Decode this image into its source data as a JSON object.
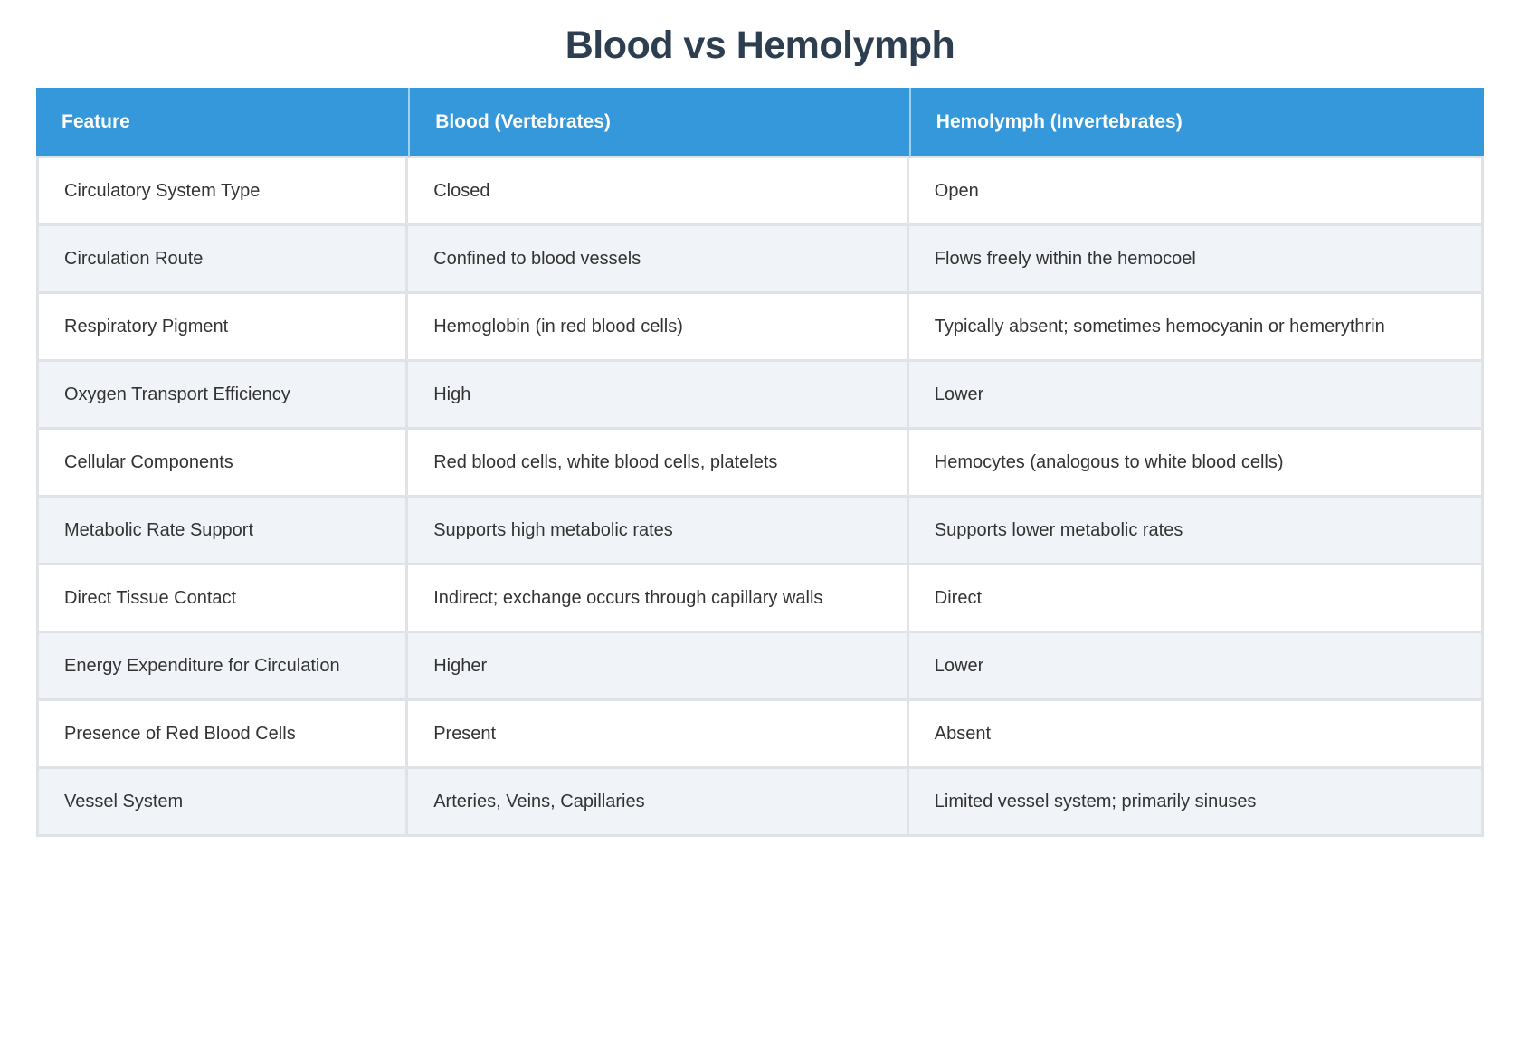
{
  "page": {
    "title": "Blood vs Hemolymph"
  },
  "colors": {
    "header_bg": "#3498db",
    "header_text": "#ffffff",
    "title_text": "#2c3e50",
    "body_text": "#333333",
    "row_alt_bg": "#f0f3f7",
    "divider": "#dfe2e6"
  },
  "table": {
    "columns": [
      "Feature",
      "Blood (Vertebrates)",
      "Hemolymph (Invertebrates)"
    ],
    "rows": [
      {
        "feature": "Circulatory System Type",
        "blood": "Closed",
        "hemolymph": "Open"
      },
      {
        "feature": "Circulation Route",
        "blood": "Confined to blood vessels",
        "hemolymph": "Flows freely within the hemocoel"
      },
      {
        "feature": "Respiratory Pigment",
        "blood": "Hemoglobin (in red blood cells)",
        "hemolymph": "Typically absent; sometimes hemocyanin or hemerythrin"
      },
      {
        "feature": "Oxygen Transport Efficiency",
        "blood": "High",
        "hemolymph": "Lower"
      },
      {
        "feature": "Cellular Components",
        "blood": "Red blood cells, white blood cells, platelets",
        "hemolymph": "Hemocytes (analogous to white blood cells)"
      },
      {
        "feature": "Metabolic Rate Support",
        "blood": "Supports high metabolic rates",
        "hemolymph": "Supports lower metabolic rates"
      },
      {
        "feature": "Direct Tissue Contact",
        "blood": "Indirect; exchange occurs through capillary walls",
        "hemolymph": "Direct"
      },
      {
        "feature": "Energy Expenditure for Circulation",
        "blood": "Higher",
        "hemolymph": "Lower"
      },
      {
        "feature": "Presence of Red Blood Cells",
        "blood": "Present",
        "hemolymph": "Absent"
      },
      {
        "feature": "Vessel System",
        "blood": "Arteries, Veins, Capillaries",
        "hemolymph": "Limited vessel system; primarily sinuses"
      }
    ]
  }
}
